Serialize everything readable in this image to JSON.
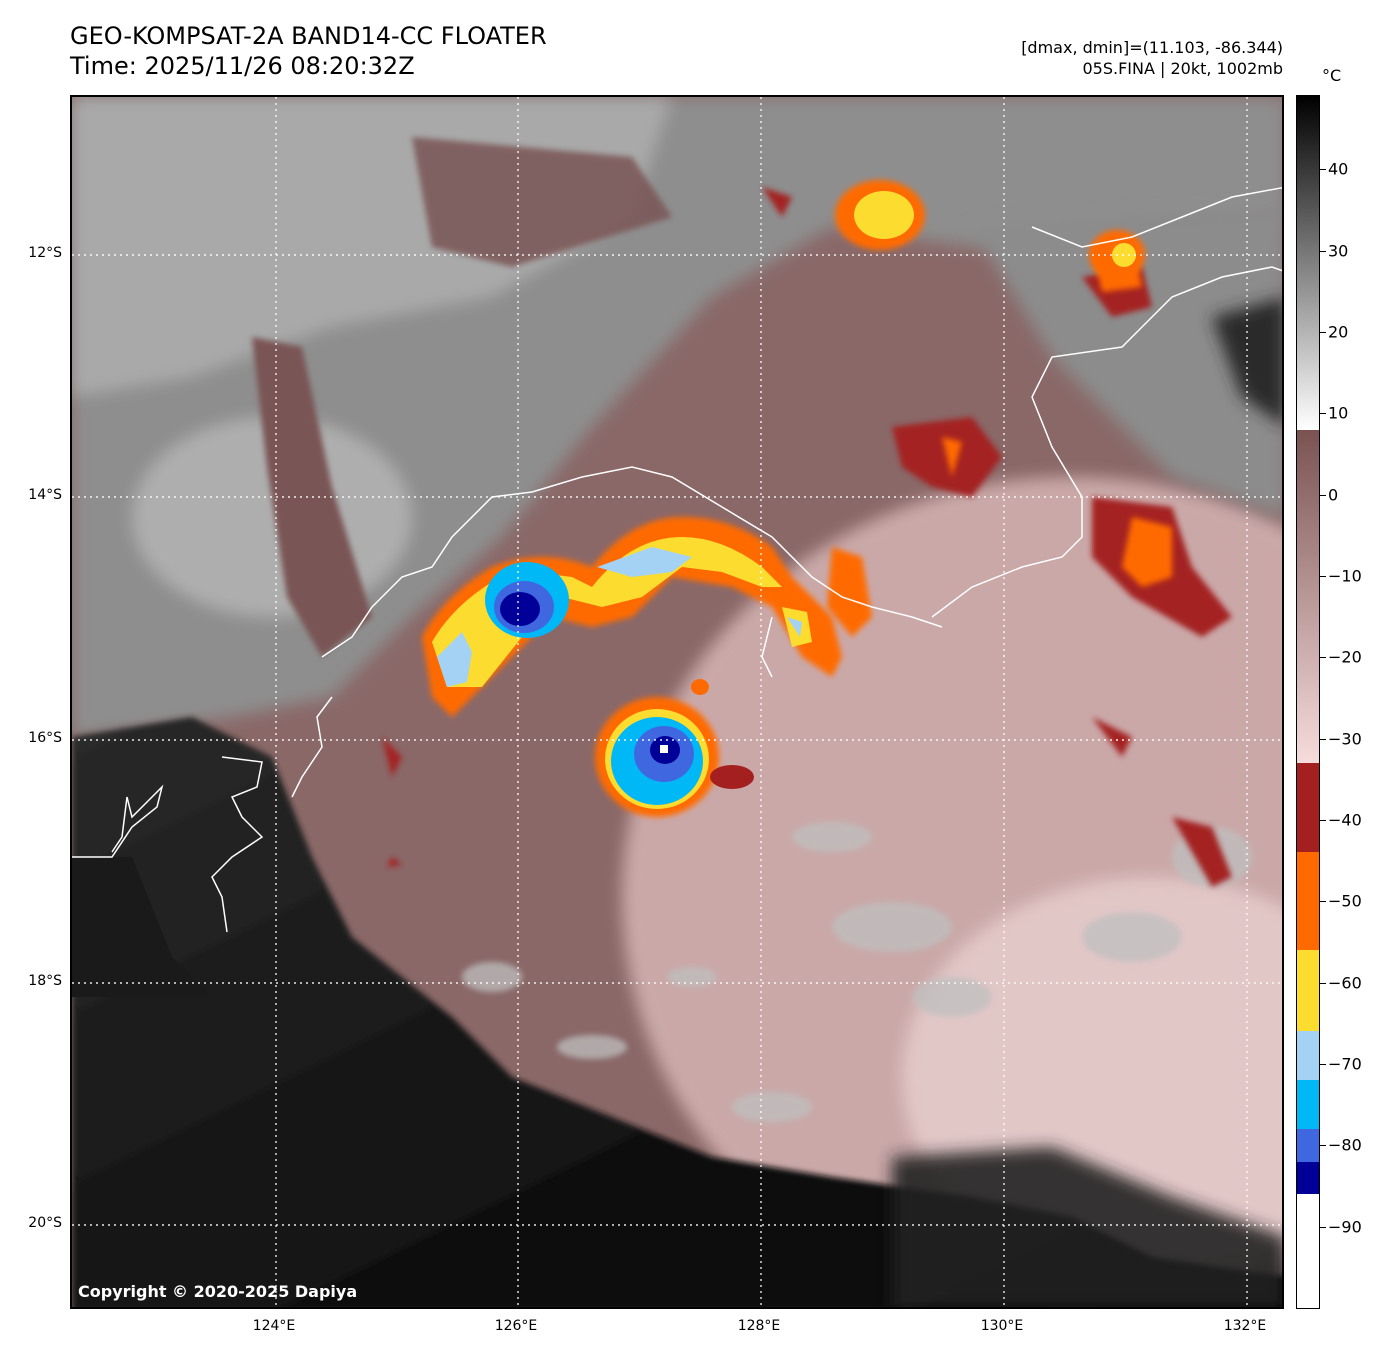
{
  "header": {
    "title_line1": "GEO-KOMPSAT-2A BAND14-CC FLOATER",
    "title_line2": "Time: 2025/11/26 08:20:32Z",
    "info_line1": "[dmax, dmin]=(11.103, -86.344)",
    "info_line2": "05S.FINA | 20kt, 1002mb"
  },
  "map": {
    "lat_labels": [
      "12°S",
      "14°S",
      "16°S",
      "18°S",
      "20°S"
    ],
    "lon_labels": [
      "124°E",
      "126°E",
      "128°E",
      "130°E",
      "132°E"
    ],
    "lon_range": [
      122.5,
      132.3
    ],
    "lat_range": [
      -10.7,
      -20.6
    ],
    "copyright": "Copyright © 2020-2025 Dapiya",
    "storm_name": "05S.FINA"
  },
  "colorbar": {
    "unit": "°C",
    "range": [
      -100,
      49
    ],
    "tick_labels": [
      "40",
      "30",
      "20",
      "10",
      "0",
      "−10",
      "−20",
      "−30",
      "−40",
      "−50",
      "−60",
      "−70",
      "−80",
      "−90"
    ],
    "tick_values": [
      40,
      30,
      20,
      10,
      0,
      -10,
      -20,
      -30,
      -40,
      -50,
      -60,
      -70,
      -80,
      -90
    ],
    "bands": [
      {
        "from": -100,
        "to": -86,
        "color": "#ffffff"
      },
      {
        "from": -86,
        "to": -82,
        "color": "#000099"
      },
      {
        "from": -82,
        "to": -78,
        "color": "#3f68e0"
      },
      {
        "from": -78,
        "to": -72,
        "color": "#00b8f5"
      },
      {
        "from": -72,
        "to": -66,
        "color": "#a3d2f5"
      },
      {
        "from": -66,
        "to": -56,
        "color": "#fbdc2f"
      },
      {
        "from": -56,
        "to": -44,
        "color": "#ff6a00"
      },
      {
        "from": -44,
        "to": -33,
        "color": "#a42020"
      },
      {
        "from": -33,
        "to": 8,
        "gradient": [
          "#f7dcdc",
          "#7a5252"
        ]
      },
      {
        "from": 8,
        "to": 49,
        "gradient": [
          "#ffffff",
          "#000000"
        ]
      }
    ]
  }
}
